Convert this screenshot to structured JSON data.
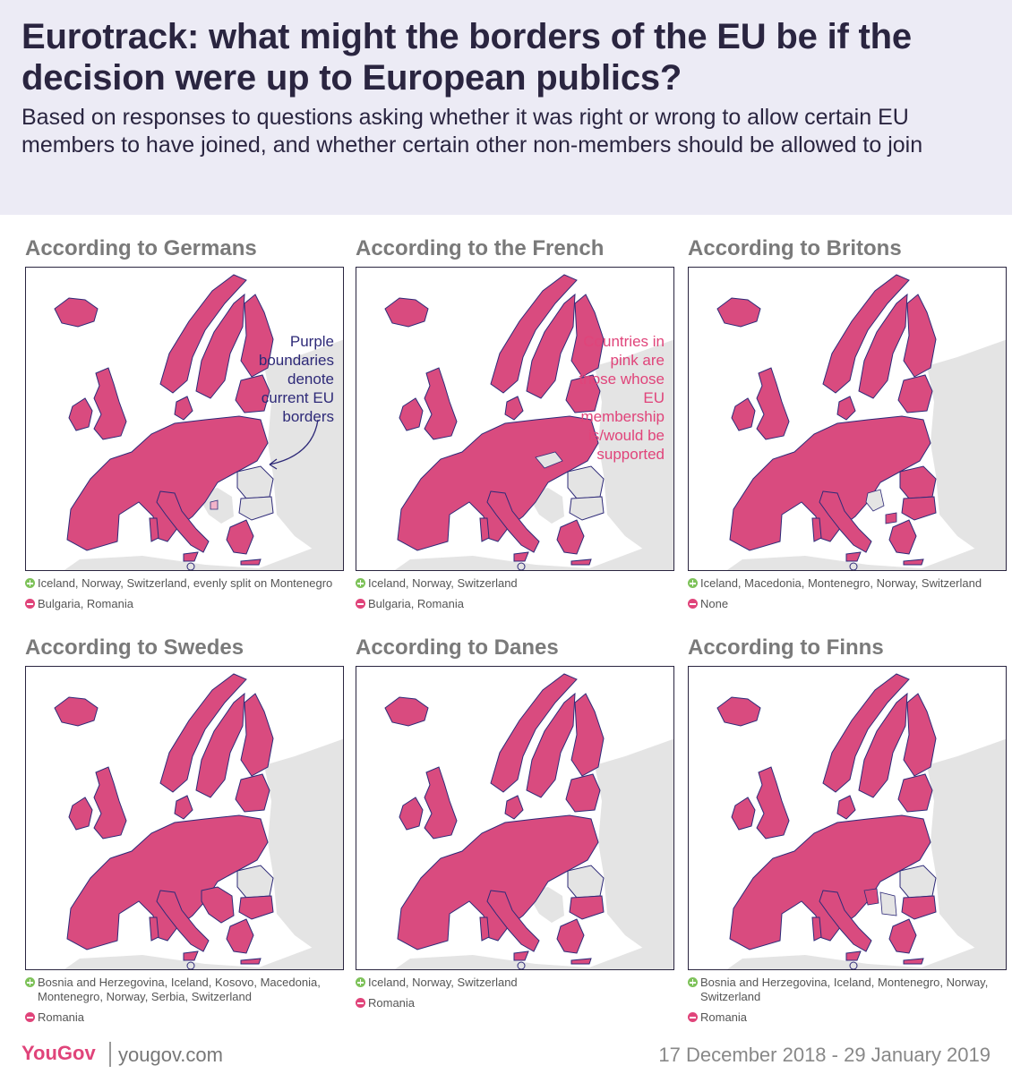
{
  "header": {
    "title": "Eurotrack: what might the borders of the EU be if the decision were up to European publics?",
    "subtitle": "Based on responses to questions asking whether it was right or wrong to allow certain EU members to have joined, and whether certain other non-members should be allowed to join"
  },
  "colors": {
    "pink": "#d94b7f",
    "grey": "#e4e4e4",
    "border": "#2e2a78",
    "background": "#ecebf5"
  },
  "annotations": {
    "germans": "Purple boundaries denote current EU borders",
    "french": "Countries in pink are those whose EU membership is/would be supported"
  },
  "panels": [
    {
      "title": "According to Germans",
      "plus": "Iceland, Norway, Switzerland, evenly split on Montenegro",
      "minus": "Bulgaria, Romania"
    },
    {
      "title": "According to the French",
      "plus": "Iceland, Norway, Switzerland",
      "minus": "Bulgaria, Romania"
    },
    {
      "title": "According to Britons",
      "plus": "Iceland, Macedonia, Montenegro, Norway, Switzerland",
      "minus": "None"
    },
    {
      "title": "According to Swedes",
      "plus": "Bosnia and Herzegovina, Iceland, Kosovo, Macedonia, Montenegro, Norway, Serbia, Switzerland",
      "minus": "Romania"
    },
    {
      "title": "According to Danes",
      "plus": "Iceland, Norway, Switzerland",
      "minus": "Romania"
    },
    {
      "title": "According to Finns",
      "plus": "Bosnia and Herzegovina, Iceland, Montenegro, Norway, Switzerland",
      "minus": "Romania"
    }
  ],
  "footer": {
    "logo": "YouGov",
    "url": "yougov.com",
    "date": "17 December 2018 - 29 January 2019"
  }
}
